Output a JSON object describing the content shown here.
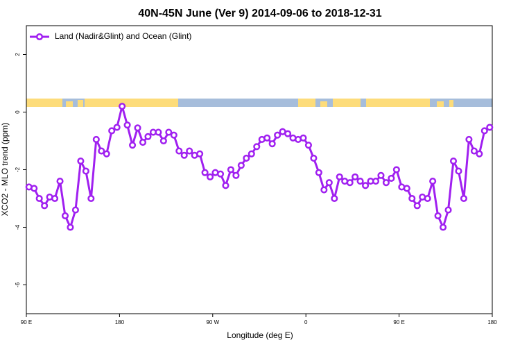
{
  "chart_data": {
    "type": "line",
    "title": "40N-45N June (Ver 9)   2014-09-06 to 2018-12-31",
    "xlabel": "Longitude (deg E)",
    "ylabel": "XCO2 - MLO trend (ppm)",
    "x": [
      92.5,
      97.5,
      102.5,
      107.5,
      112.5,
      117.5,
      122.5,
      127.5,
      132.5,
      137.5,
      142.5,
      147.5,
      152.5,
      157.5,
      162.5,
      167.5,
      172.5,
      177.5,
      182.5,
      187.5,
      192.5,
      197.5,
      202.5,
      207.5,
      212.5,
      217.5,
      222.5,
      227.5,
      232.5,
      237.5,
      242.5,
      247.5,
      252.5,
      257.5,
      262.5,
      267.5,
      272.5,
      277.5,
      282.5,
      287.5,
      292.5,
      297.5,
      302.5,
      307.5,
      312.5,
      317.5,
      322.5,
      327.5,
      332.5,
      337.5,
      342.5,
      347.5,
      352.5,
      357.5,
      362.5,
      367.5,
      372.5,
      377.5,
      382.5,
      387.5,
      392.5,
      397.5,
      402.5,
      407.5,
      412.5,
      417.5,
      422.5,
      427.5,
      432.5,
      437.5,
      442.5,
      447.5,
      452.5,
      457.5,
      462.5,
      467.5,
      472.5,
      477.5,
      482.5,
      487.5,
      492.5,
      497.5,
      502.5,
      507.5,
      512.5,
      517.5,
      522.5,
      527.5,
      532.5,
      537.5
    ],
    "series": [
      {
        "name": "Land (Nadir&Glint) and Ocean (Glint)",
        "color": "#a020f0",
        "values": [
          -2.6,
          -2.65,
          -3.0,
          -3.25,
          -2.95,
          -3.0,
          -2.4,
          -3.6,
          -4.0,
          -3.4,
          -1.7,
          -2.05,
          -3.0,
          -0.95,
          -1.35,
          -1.45,
          -0.65,
          -0.53,
          0.2,
          -0.45,
          -1.15,
          -0.55,
          -1.05,
          -0.85,
          -0.7,
          -0.7,
          -1.0,
          -0.7,
          -0.8,
          -1.35,
          -1.5,
          -1.35,
          -1.5,
          -1.45,
          -2.1,
          -2.25,
          -2.1,
          -2.15,
          -2.55,
          -2.0,
          -2.2,
          -1.85,
          -1.6,
          -1.45,
          -1.2,
          -0.95,
          -0.9,
          -1.1,
          -0.8,
          -0.68,
          -0.75,
          -0.9,
          -0.95,
          -0.9,
          -1.15,
          -1.6,
          -2.1,
          -2.7,
          -2.45,
          -3.0,
          -2.25,
          -2.4,
          -2.45,
          -2.25,
          -2.4,
          -2.55,
          -2.4,
          -2.4,
          -2.2,
          -2.45,
          -2.3,
          -2.0,
          -2.6,
          -2.65,
          -3.0,
          -3.25,
          -2.95,
          -3.0,
          -2.4,
          -3.6,
          -4.0,
          -3.4,
          -1.7,
          -2.05,
          -3.0,
          -0.95,
          -1.35,
          -1.45,
          -0.65,
          -0.53
        ]
      }
    ],
    "xlim": [
      90,
      540
    ],
    "xticks": [
      {
        "value": 90,
        "label": "90 E"
      },
      180,
      {
        "value": 270,
        "label": "90 W"
      },
      {
        "value": 360,
        "label": "0"
      },
      {
        "value": 450,
        "label": "90 E"
      },
      {
        "value": 540,
        "label": "180"
      }
    ],
    "ylim": [
      -7,
      3
    ],
    "yticks": [
      2,
      0,
      -2,
      -4,
      -6
    ],
    "legend": "top-left"
  }
}
